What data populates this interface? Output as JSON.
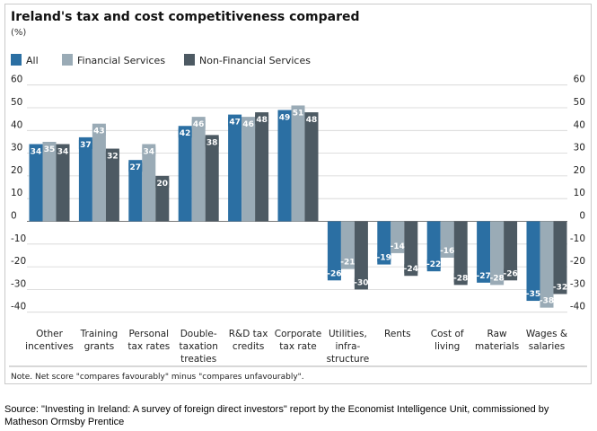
{
  "chart_data": {
    "type": "bar",
    "title": "Ireland's tax and cost competitiveness compared",
    "unit": "(%)",
    "categories": [
      [
        "Other",
        "incentives"
      ],
      [
        "Training",
        "grants"
      ],
      [
        "Personal",
        "tax rates"
      ],
      [
        "Double-",
        "taxation",
        "treaties"
      ],
      [
        "R&D tax",
        "credits"
      ],
      [
        "Corporate",
        "tax rate"
      ],
      [
        "Utilities,",
        "infra-",
        "structure"
      ],
      [
        "Rents"
      ],
      [
        "Cost of",
        "living"
      ],
      [
        "Raw",
        "materials"
      ],
      [
        "Wages &",
        "salaries"
      ]
    ],
    "series": [
      {
        "name": "All",
        "color": "#2b6fa3",
        "values": [
          34,
          37,
          27,
          42,
          47,
          49,
          -26,
          -19,
          -22,
          -27,
          -35
        ]
      },
      {
        "name": "Financial Services",
        "color": "#9aabb6",
        "values": [
          35,
          43,
          34,
          46,
          46,
          51,
          -21,
          -14,
          -16,
          -28,
          -38
        ]
      },
      {
        "name": "Non-Financial Services",
        "color": "#4d5a63",
        "values": [
          34,
          32,
          20,
          38,
          48,
          48,
          -30,
          -24,
          -28,
          -26,
          -32
        ]
      }
    ],
    "ylim": [
      -40,
      60
    ],
    "yticks": [
      60,
      50,
      40,
      30,
      20,
      10,
      0,
      -10,
      -20,
      -30,
      -40
    ],
    "grid": true,
    "legend": "top-left",
    "note": "Note. Net score \"compares favourably\" minus \"compares unfavourably\"."
  },
  "source_text": "Source: \"Investing in Ireland: A survey of foreign direct investors\" report by the Economist Intelligence Unit, commissioned by Matheson Ormsby Prentice"
}
